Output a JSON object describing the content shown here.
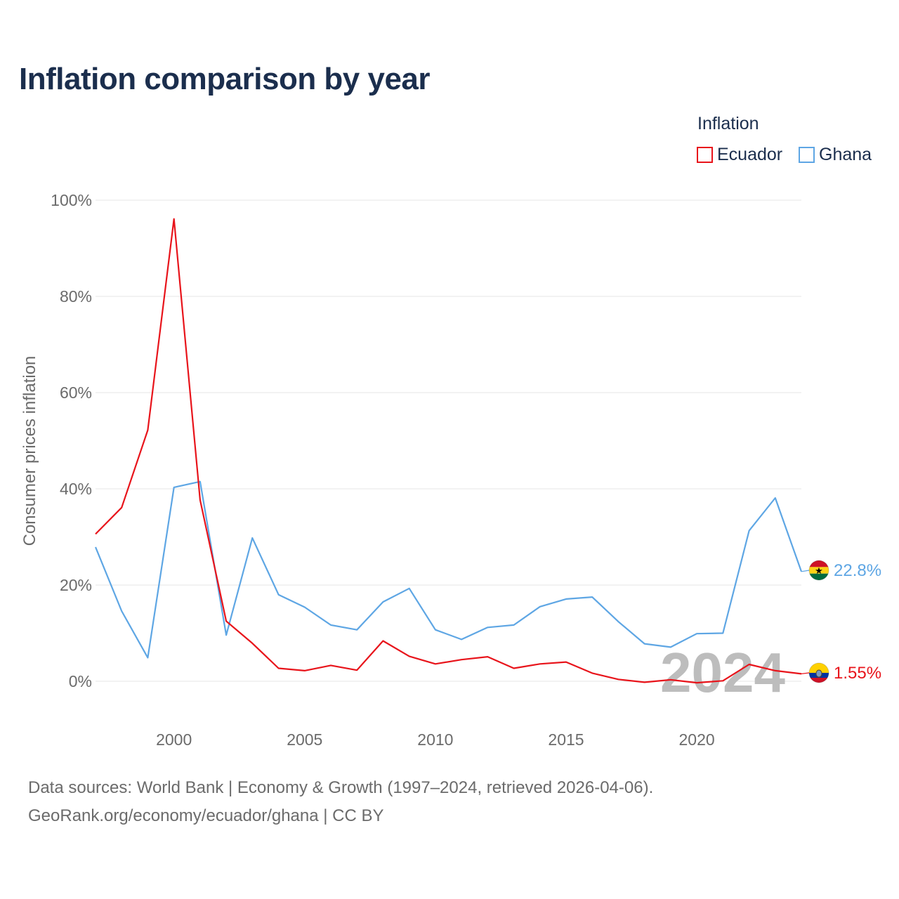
{
  "chart_data": {
    "type": "line",
    "title": "Inflation comparison by year",
    "legend_title": "Inflation",
    "ylabel": "Consumer prices inflation",
    "xlabel": "",
    "ylim": [
      -10,
      100
    ],
    "xlim": [
      1997,
      2024
    ],
    "yticks": [
      0,
      20,
      40,
      60,
      80,
      100
    ],
    "ytick_labels": [
      "0%",
      "20%",
      "40%",
      "60%",
      "80%",
      "100%"
    ],
    "xticks": [
      2000,
      2005,
      2010,
      2015,
      2020
    ],
    "xtick_labels": [
      "2000",
      "2005",
      "2010",
      "2015",
      "2020"
    ],
    "grid": true,
    "year_watermark": "2024",
    "x": [
      1997,
      1998,
      1999,
      2000,
      2001,
      2002,
      2003,
      2004,
      2005,
      2006,
      2007,
      2008,
      2009,
      2010,
      2011,
      2012,
      2013,
      2014,
      2015,
      2016,
      2017,
      2018,
      2019,
      2020,
      2021,
      2022,
      2023,
      2024
    ],
    "series": [
      {
        "name": "Ecuador",
        "color": "#e8141b",
        "end_label": "1.55%",
        "flag_icon": "ecuador-flag-icon",
        "values": [
          30.6,
          36.1,
          52.2,
          96.1,
          37.7,
          12.5,
          7.9,
          2.7,
          2.2,
          3.3,
          2.3,
          8.4,
          5.2,
          3.6,
          4.5,
          5.1,
          2.7,
          3.6,
          4.0,
          1.7,
          0.4,
          -0.2,
          0.3,
          -0.3,
          0.1,
          3.5,
          2.2,
          1.55
        ]
      },
      {
        "name": "Ghana",
        "color": "#5ea6e4",
        "end_label": "22.8%",
        "flag_icon": "ghana-flag-icon",
        "values": [
          27.9,
          14.6,
          4.9,
          40.3,
          41.5,
          9.6,
          29.8,
          18.0,
          15.4,
          11.7,
          10.7,
          16.5,
          19.3,
          10.7,
          8.7,
          11.2,
          11.7,
          15.5,
          17.1,
          17.5,
          12.4,
          7.8,
          7.1,
          9.9,
          10.0,
          31.3,
          38.1,
          22.8
        ]
      }
    ]
  },
  "source": {
    "line1": "Data sources: World Bank | Economy & Growth (1997–2024, retrieved 2026-04-06).",
    "line2": "GeoRank.org/economy/ecuador/ghana | CC BY"
  }
}
